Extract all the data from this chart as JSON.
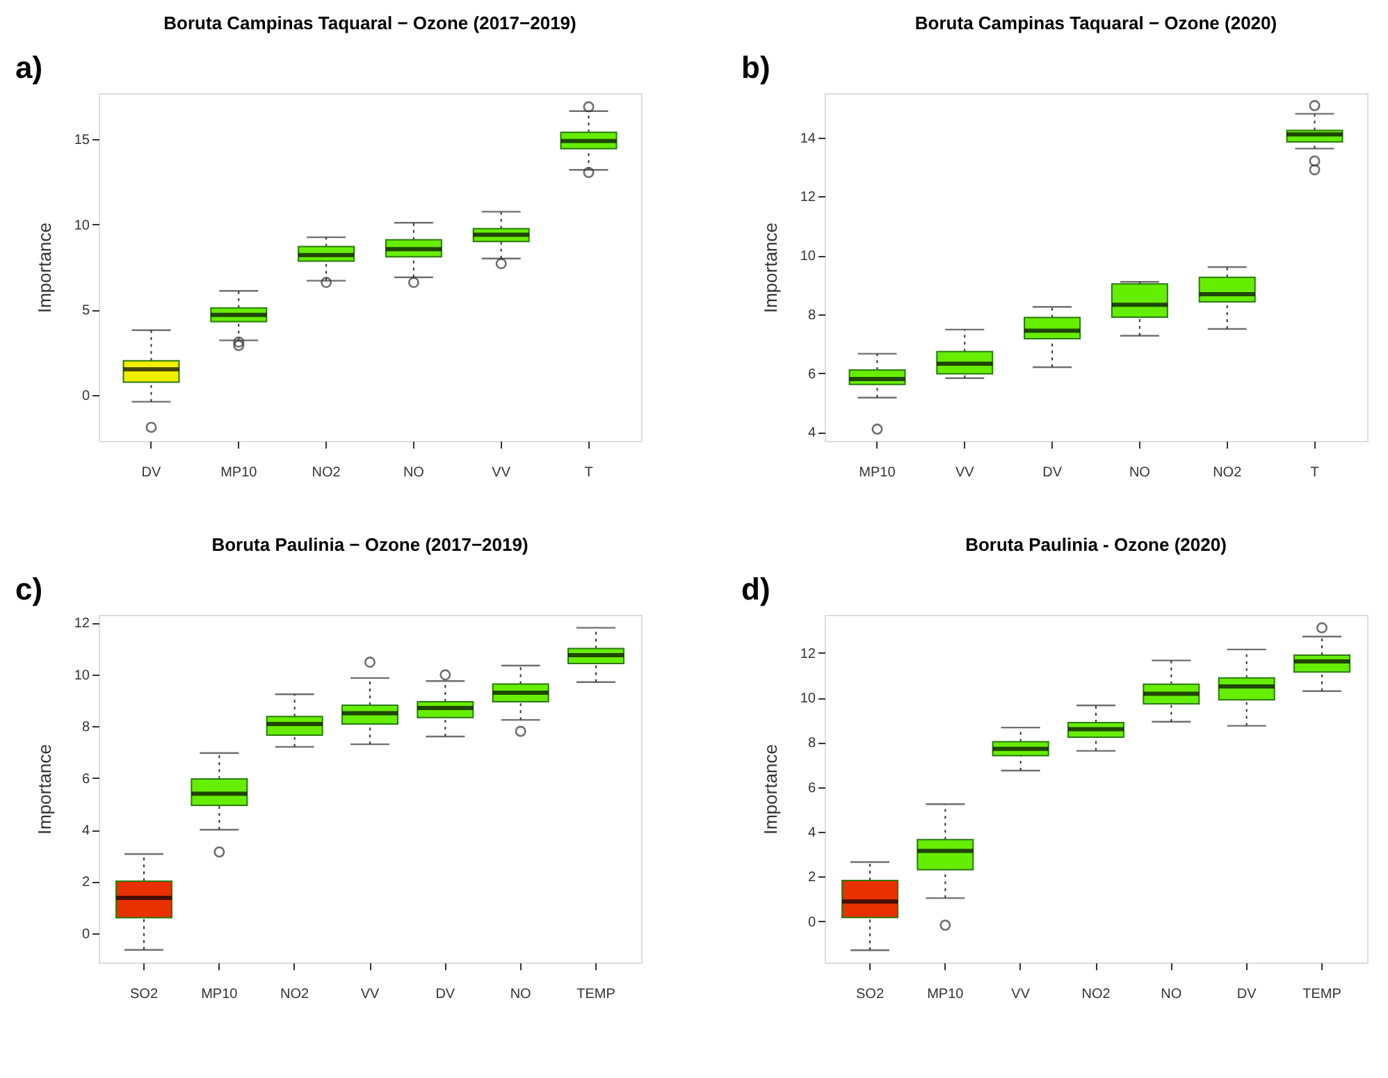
{
  "chart_data": [
    {
      "type": "box",
      "title": "Boruta Campinas Taquaral − Ozone (2017−2019)",
      "ylabel": "Importance",
      "annotations": [
        "a)"
      ],
      "grid": false,
      "categories": [
        "DV",
        "MP10",
        "NO2",
        "NO",
        "VV",
        "T"
      ],
      "colors": [
        "#f2ee00",
        "#66ee00",
        "#66ee00",
        "#66ee00",
        "#66ee00",
        "#66ee00"
      ],
      "ylim": [
        -2.7,
        17.7
      ],
      "yticks": [
        0,
        5,
        10,
        15
      ],
      "boxes": [
        {
          "low": -0.4,
          "q1": 0.75,
          "median": 1.5,
          "q3": 2.0,
          "high": 3.8,
          "outliers": [
            -1.9
          ]
        },
        {
          "low": 3.2,
          "q1": 4.3,
          "median": 4.7,
          "q3": 5.1,
          "high": 6.1,
          "outliers": [
            3.1,
            2.9
          ]
        },
        {
          "low": 6.7,
          "q1": 7.85,
          "median": 8.2,
          "q3": 8.7,
          "high": 9.25,
          "outliers": [
            6.6
          ]
        },
        {
          "low": 6.9,
          "q1": 8.1,
          "median": 8.55,
          "q3": 9.1,
          "high": 10.1,
          "outliers": [
            6.6
          ]
        },
        {
          "low": 8.0,
          "q1": 9.0,
          "median": 9.4,
          "q3": 9.75,
          "high": 10.75,
          "outliers": [
            7.7
          ]
        },
        {
          "low": 13.2,
          "q1": 14.45,
          "median": 14.9,
          "q3": 15.4,
          "high": 16.65,
          "outliers": [
            16.9,
            13.05
          ]
        }
      ]
    },
    {
      "type": "box",
      "title": "Boruta Campinas Taquaral −  Ozone (2020)",
      "ylabel": "Importance",
      "annotations": [
        "b)"
      ],
      "grid": false,
      "categories": [
        "MP10",
        "VV",
        "DV",
        "NO",
        "NO2",
        "T"
      ],
      "colors": [
        "#66ee00",
        "#66ee00",
        "#66ee00",
        "#66ee00",
        "#66ee00",
        "#66ee00"
      ],
      "ylim": [
        3.7,
        15.5
      ],
      "yticks": [
        4,
        6,
        8,
        10,
        12,
        14
      ],
      "boxes": [
        {
          "low": 5.17,
          "q1": 5.62,
          "median": 5.8,
          "q3": 6.11,
          "high": 6.66,
          "outliers": [
            4.1
          ]
        },
        {
          "low": 5.83,
          "q1": 5.98,
          "median": 6.32,
          "q3": 6.73,
          "high": 7.48
        },
        {
          "low": 6.2,
          "q1": 7.17,
          "median": 7.44,
          "q3": 7.89,
          "high": 8.25
        },
        {
          "low": 7.27,
          "q1": 7.9,
          "median": 8.32,
          "q3": 9.03,
          "high": 9.1
        },
        {
          "low": 7.5,
          "q1": 8.42,
          "median": 8.68,
          "q3": 9.25,
          "high": 9.6
        },
        {
          "low": 13.62,
          "q1": 13.85,
          "median": 14.1,
          "q3": 14.24,
          "high": 14.8,
          "outliers": [
            15.08,
            13.2,
            12.9
          ]
        }
      ]
    },
    {
      "type": "box",
      "title": "Boruta Paulinia − Ozone (2017−2019)",
      "ylabel": "Importance",
      "annotations": [
        "c)"
      ],
      "grid": false,
      "categories": [
        "SO2",
        "MP10",
        "NO2",
        "VV",
        "DV",
        "NO",
        "TEMP"
      ],
      "colors": [
        "#e83000",
        "#66ee00",
        "#66ee00",
        "#66ee00",
        "#66ee00",
        "#66ee00",
        "#66ee00"
      ],
      "ylim": [
        -1.13,
        12.3
      ],
      "yticks": [
        0,
        2,
        4,
        6,
        8,
        10,
        12
      ],
      "boxes": [
        {
          "low": -0.64,
          "q1": 0.6,
          "median": 1.37,
          "q3": 2.01,
          "high": 3.06
        },
        {
          "low": 4.0,
          "q1": 4.94,
          "median": 5.39,
          "q3": 5.96,
          "high": 6.96,
          "outliers": [
            3.14
          ]
        },
        {
          "low": 7.2,
          "q1": 7.65,
          "median": 8.08,
          "q3": 8.37,
          "high": 9.23
        },
        {
          "low": 7.3,
          "q1": 8.08,
          "median": 8.5,
          "q3": 8.81,
          "high": 9.86,
          "outliers": [
            10.47
          ]
        },
        {
          "low": 7.6,
          "q1": 8.33,
          "median": 8.7,
          "q3": 8.94,
          "high": 9.74,
          "outliers": [
            9.98
          ]
        },
        {
          "low": 8.24,
          "q1": 8.94,
          "median": 9.29,
          "q3": 9.63,
          "high": 10.34,
          "outliers": [
            7.8
          ]
        },
        {
          "low": 9.7,
          "q1": 10.42,
          "median": 10.74,
          "q3": 11.0,
          "high": 11.8
        }
      ]
    },
    {
      "type": "box",
      "title": "Boruta Paulinia -  Ozone (2020)",
      "ylabel": "Importance",
      "annotations": [
        "d)"
      ],
      "grid": false,
      "categories": [
        "SO2",
        "MP10",
        "VV",
        "NO2",
        "NO",
        "DV",
        "TEMP"
      ],
      "colors": [
        "#e83000",
        "#66ee00",
        "#66ee00",
        "#66ee00",
        "#66ee00",
        "#66ee00",
        "#66ee00"
      ],
      "ylim": [
        -1.84,
        13.7
      ],
      "yticks": [
        0,
        2,
        4,
        6,
        8,
        10,
        12
      ],
      "boxes": [
        {
          "low": -1.29,
          "q1": 0.17,
          "median": 0.89,
          "q3": 1.83,
          "high": 2.65
        },
        {
          "low": 1.04,
          "q1": 2.31,
          "median": 3.15,
          "q3": 3.65,
          "high": 5.24,
          "outliers": [
            -0.17
          ]
        },
        {
          "low": 6.74,
          "q1": 7.41,
          "median": 7.71,
          "q3": 8.03,
          "high": 8.66
        },
        {
          "low": 7.62,
          "q1": 8.23,
          "median": 8.59,
          "q3": 8.88,
          "high": 9.65
        },
        {
          "low": 8.92,
          "q1": 9.72,
          "median": 10.17,
          "q3": 10.6,
          "high": 11.66
        },
        {
          "low": 8.74,
          "q1": 9.9,
          "median": 10.5,
          "q3": 10.88,
          "high": 12.15
        },
        {
          "low": 10.29,
          "q1": 11.14,
          "median": 11.62,
          "q3": 11.9,
          "high": 12.73,
          "outliers": [
            13.12
          ]
        }
      ]
    }
  ]
}
